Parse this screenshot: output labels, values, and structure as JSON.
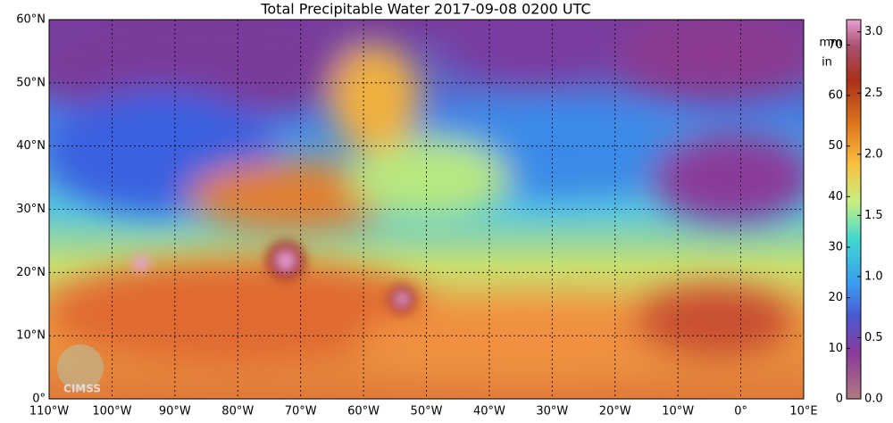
{
  "title": "Total Precipitable Water  2017-09-08 0200 UTC",
  "map": {
    "lat_labels": [
      "0°",
      "10°N",
      "20°N",
      "30°N",
      "40°N",
      "50°N",
      "60°N"
    ],
    "lon_labels": [
      "110°W",
      "100°W",
      "90°W",
      "80°W",
      "70°W",
      "60°W",
      "50°W",
      "40°W",
      "30°W",
      "20°W",
      "10°W",
      "0°",
      "10°E"
    ],
    "logo": "CIMSS"
  },
  "colorbar": {
    "mm_unit": "mm",
    "in_unit": "in",
    "mm_lim": [
      0,
      75
    ],
    "mm_ticks": [
      0,
      10,
      20,
      30,
      40,
      50,
      60,
      70
    ],
    "in_lim": [
      0,
      3.1
    ],
    "in_ticks": [
      {
        "value": 0,
        "label": "0.0"
      },
      {
        "value": 0.5,
        "label": "0.5"
      },
      {
        "value": 1,
        "label": "1.0"
      },
      {
        "value": 1.5,
        "label": "1.5"
      },
      {
        "value": 2,
        "label": "2.0"
      },
      {
        "value": 2.5,
        "label": "2.5"
      },
      {
        "value": 3,
        "label": "3.0"
      }
    ]
  }
}
